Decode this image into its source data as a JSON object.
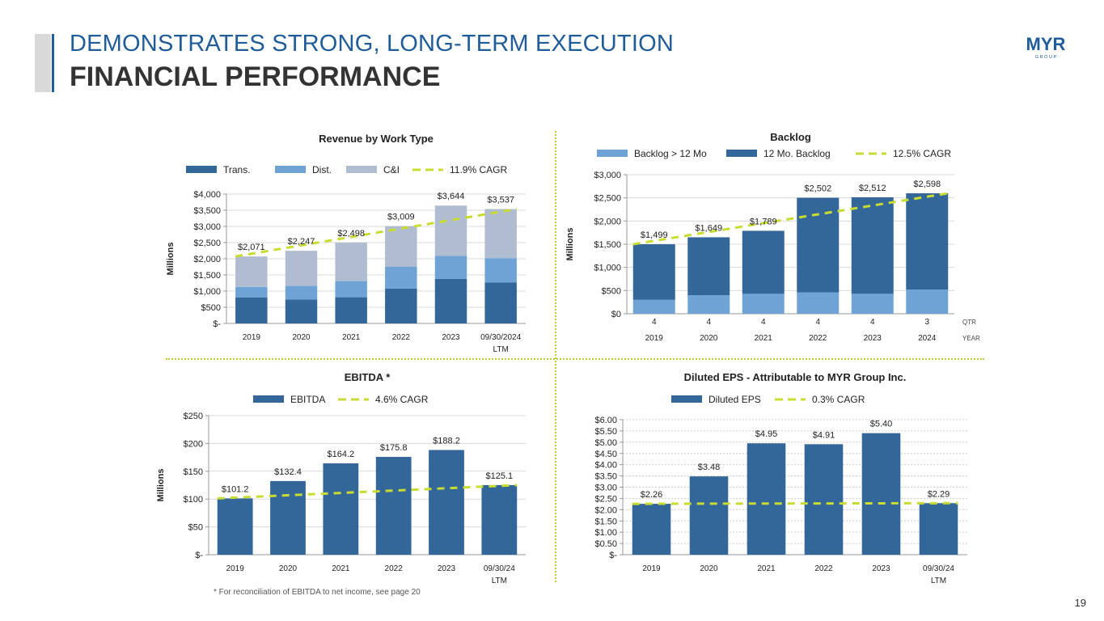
{
  "header": {
    "title_line1": "DEMONSTRATES STRONG, LONG-TERM EXECUTION",
    "title_line2": "FINANCIAL PERFORMANCE",
    "logo_text": "MYR",
    "logo_subtext": "G R O U P"
  },
  "footer": {
    "footnote": "* For reconciliation of EBITDA to net income, see page 20",
    "page_number": "19"
  },
  "colors": {
    "dark_blue": "#336699",
    "mid_blue": "#6fa3d6",
    "gray_blue": "#b0bcd0",
    "cagr_green": "#c8dc32",
    "title_blue": "#1f5c99"
  },
  "chart_data": [
    {
      "id": "revenue",
      "type": "bar",
      "stacked": true,
      "title": "Revenue by Work Type",
      "ylabel": "Millions",
      "ylim": [
        0,
        4000
      ],
      "yticks": [
        0,
        500,
        1000,
        1500,
        2000,
        2500,
        3000,
        3500,
        4000
      ],
      "ytick_labels": [
        "$-",
        "$500",
        "$1,000",
        "$1,500",
        "$2,000",
        "$2,500",
        "$3,000",
        "$3,500",
        "$4,000"
      ],
      "categories": [
        "2019",
        "2020",
        "2021",
        "2022",
        "2023",
        "09/30/2024"
      ],
      "category_sublabels": [
        "",
        "",
        "",
        "",
        "",
        "LTM"
      ],
      "series": [
        {
          "name": "Trans.",
          "values": [
            800,
            740,
            810,
            1080,
            1380,
            1270
          ]
        },
        {
          "name": "Dist.",
          "values": [
            330,
            420,
            500,
            670,
            710,
            750
          ]
        },
        {
          "name": "C&I",
          "values": [
            941,
            1087,
            1188,
            1259,
            1554,
            1517
          ]
        }
      ],
      "totals": [
        2071,
        2247,
        2498,
        3009,
        3644,
        3537
      ],
      "total_labels": [
        "$2,071",
        "$2,247",
        "$2,498",
        "$3,009",
        "$3,644",
        "$3,537"
      ],
      "cagr": {
        "name": "11.9% CAGR",
        "start": 2071,
        "end": 3537
      }
    },
    {
      "id": "backlog",
      "type": "bar",
      "stacked": true,
      "title": "Backlog",
      "ylabel": "Millions",
      "ylim": [
        0,
        3000
      ],
      "yticks": [
        0,
        500,
        1000,
        1500,
        2000,
        2500,
        3000
      ],
      "ytick_labels": [
        "$0",
        "$500",
        "$1,000",
        "$1,500",
        "$2,000",
        "$2,500",
        "$3,000"
      ],
      "categories": [
        "2019",
        "2020",
        "2021",
        "2022",
        "2023",
        "2024"
      ],
      "quarters": [
        "4",
        "4",
        "4",
        "4",
        "4",
        "3"
      ],
      "quarter_row_label": "QTR",
      "year_row_label": "YEAR",
      "series": [
        {
          "name": "Backlog > 12 Mo",
          "values": [
            300,
            400,
            430,
            460,
            430,
            520
          ]
        },
        {
          "name": "12 Mo. Backlog",
          "values": [
            1199,
            1249,
            1359,
            2042,
            2082,
            2078
          ]
        }
      ],
      "totals": [
        1499,
        1649,
        1789,
        2502,
        2512,
        2598
      ],
      "total_labels": [
        "$1,499",
        "$1,649",
        "$1,789",
        "$2,502",
        "$2,512",
        "$2,598"
      ],
      "cagr": {
        "name": "12.5% CAGR",
        "start": 1499,
        "end": 2598
      }
    },
    {
      "id": "ebitda",
      "type": "bar",
      "title": "EBITDA *",
      "ylabel": "Millions",
      "ylim": [
        0,
        250
      ],
      "yticks": [
        0,
        50,
        100,
        150,
        200,
        250
      ],
      "ytick_labels": [
        "$-",
        "$50",
        "$100",
        "$150",
        "$200",
        "$250"
      ],
      "categories": [
        "2019",
        "2020",
        "2021",
        "2022",
        "2023",
        "09/30/24"
      ],
      "category_sublabels": [
        "",
        "",
        "",
        "",
        "",
        "LTM"
      ],
      "series": [
        {
          "name": "EBITDA",
          "values": [
            101.2,
            132.4,
            164.2,
            175.8,
            188.2,
            125.1
          ]
        }
      ],
      "value_labels": [
        "$101.2",
        "$132.4",
        "$164.2",
        "$175.8",
        "$188.2",
        "$125.1"
      ],
      "cagr": {
        "name": "4.6% CAGR",
        "start": 101.2,
        "end": 125.1
      }
    },
    {
      "id": "eps",
      "type": "bar",
      "title": "Diluted EPS - Attributable to MYR Group Inc.",
      "ylabel": "",
      "ylim": [
        0,
        6
      ],
      "yticks": [
        0,
        0.5,
        1,
        1.5,
        2,
        2.5,
        3,
        3.5,
        4,
        4.5,
        5,
        5.5,
        6
      ],
      "ytick_labels": [
        "$-",
        "$0.50",
        "$1.00",
        "$1.50",
        "$2.00",
        "$2.50",
        "$3.00",
        "$3.50",
        "$4.00",
        "$4.50",
        "$5.00",
        "$5.50",
        "$6.00"
      ],
      "categories": [
        "2019",
        "2020",
        "2021",
        "2022",
        "2023",
        "09/30/24"
      ],
      "category_sublabels": [
        "",
        "",
        "",
        "",
        "",
        "LTM"
      ],
      "series": [
        {
          "name": "Diluted EPS",
          "values": [
            2.26,
            3.48,
            4.95,
            4.91,
            5.4,
            2.29
          ]
        }
      ],
      "value_labels": [
        "$2.26",
        "$3.48",
        "$4.95",
        "$4.91",
        "$5.40",
        "$2.29"
      ],
      "cagr": {
        "name": "0.3% CAGR",
        "start": 2.26,
        "end": 2.29
      }
    }
  ]
}
